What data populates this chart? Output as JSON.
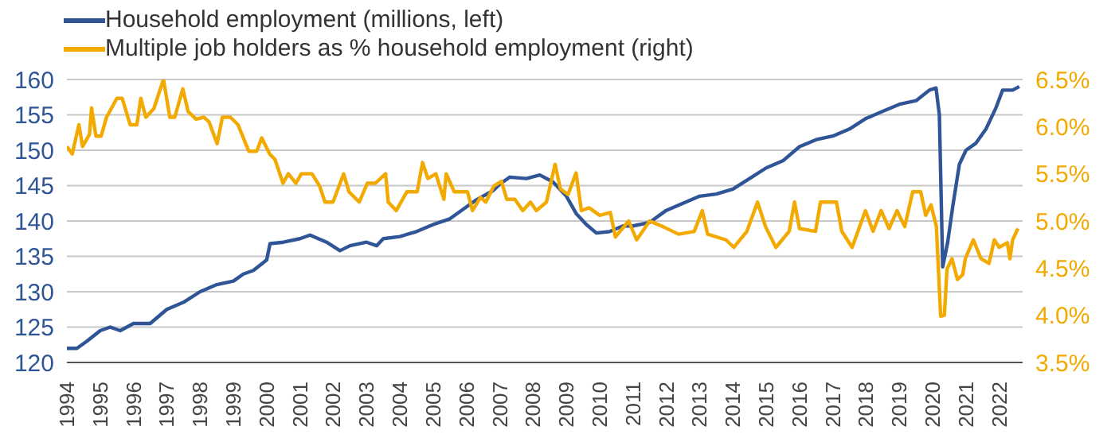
{
  "chart_data": {
    "type": "line",
    "legend": "top left",
    "grid": "y",
    "marker": "none",
    "line_style": "solid",
    "xlim": [
      1994,
      2022.7
    ],
    "xticks": [
      1994,
      1995,
      1996,
      1997,
      1998,
      1999,
      2000,
      2001,
      2002,
      2003,
      2004,
      2005,
      2006,
      2007,
      2008,
      2009,
      2010,
      2011,
      2012,
      2013,
      2014,
      2015,
      2016,
      2017,
      2018,
      2019,
      2020,
      2021,
      2022
    ],
    "ylim": [
      120,
      160
    ],
    "yticks": [
      120,
      125,
      130,
      135,
      140,
      145,
      150,
      155,
      160
    ],
    "y2lim": [
      3.5,
      6.5
    ],
    "y2ticks": [
      {
        "value": 3.5,
        "label": "3.5%"
      },
      {
        "value": 4.0,
        "label": "4.0%"
      },
      {
        "value": 4.5,
        "label": "4.5%"
      },
      {
        "value": 5.0,
        "label": "5.0%"
      },
      {
        "value": 5.5,
        "label": "5.5%"
      },
      {
        "value": 6.0,
        "label": "6.0%"
      },
      {
        "value": 6.5,
        "label": "6.5%"
      }
    ],
    "series": [
      {
        "name": "Household employment (millions, left)",
        "color": "#2f5597",
        "x": [
          1994,
          1994.3,
          1994.6,
          1995,
          1995.3,
          1995.6,
          1996,
          1996.5,
          1997,
          1997.5,
          1998,
          1998.5,
          1999,
          1999.3,
          1999.6,
          2000,
          2000.1,
          2000.5,
          2001,
          2001.3,
          2001.8,
          2002.2,
          2002.5,
          2003,
          2003.3,
          2003.5,
          2004,
          2004.5,
          2005,
          2005.5,
          2006,
          2006.3,
          2006.8,
          2007,
          2007.3,
          2007.8,
          2008.2,
          2008.6,
          2009,
          2009.3,
          2009.6,
          2009.9,
          2010.3,
          2010.7,
          2011,
          2011.5,
          2012,
          2012.5,
          2013,
          2013.5,
          2014,
          2014.5,
          2015,
          2015.5,
          2016,
          2016.5,
          2017,
          2017.5,
          2018,
          2018.5,
          2019,
          2019.5,
          2019.9,
          2020.1,
          2020.2,
          2020.3,
          2020.45,
          2020.6,
          2020.8,
          2021,
          2021.3,
          2021.6,
          2021.9,
          2022.1,
          2022.4,
          2022.6
        ],
        "values": [
          122,
          122,
          123,
          124.5,
          125,
          124.5,
          125.5,
          125.5,
          127.5,
          128.5,
          130,
          131,
          131.5,
          132.5,
          133,
          134.5,
          136.8,
          137,
          137.5,
          138,
          137,
          135.8,
          136.5,
          137,
          136.5,
          137.5,
          137.8,
          138.5,
          139.5,
          140.3,
          142,
          143,
          144.3,
          145.2,
          146.2,
          146,
          146.5,
          145.5,
          143.5,
          141,
          139.5,
          138.3,
          138.5,
          139.3,
          139.3,
          139.8,
          141.5,
          142.5,
          143.5,
          143.8,
          144.5,
          146,
          147.5,
          148.5,
          150.5,
          151.5,
          152,
          153,
          154.5,
          155.5,
          156.5,
          157,
          158.5,
          158.8,
          155,
          133.5,
          137,
          142,
          148,
          150,
          151,
          153,
          156,
          158.5,
          158.5,
          159
        ]
      },
      {
        "name": "Multiple job holders as % household employment (right)",
        "color": "#f2a900",
        "axis": "y2",
        "x": [
          1994,
          1994.16,
          1994.36,
          1994.47,
          1994.68,
          1994.74,
          1994.87,
          1995.03,
          1995.19,
          1995.5,
          1995.66,
          1995.9,
          1996.1,
          1996.22,
          1996.37,
          1996.61,
          1996.9,
          1997.09,
          1997.24,
          1997.48,
          1997.64,
          1997.88,
          1998.11,
          1998.27,
          1998.51,
          1998.67,
          1998.91,
          1999.14,
          1999.46,
          1999.7,
          1999.85,
          2000.09,
          2000.25,
          2000.49,
          2000.65,
          2000.88,
          2001.04,
          2001.36,
          2001.59,
          2001.75,
          2001.99,
          2002.31,
          2002.47,
          2002.78,
          2003.02,
          2003.26,
          2003.57,
          2003.65,
          2003.89,
          2004.21,
          2004.52,
          2004.68,
          2004.84,
          2005.08,
          2005.32,
          2005.39,
          2005.63,
          2006.03,
          2006.18,
          2006.42,
          2006.58,
          2006.82,
          2007.05,
          2007.21,
          2007.45,
          2007.69,
          2007.92,
          2008.1,
          2008.4,
          2008.66,
          2008.82,
          2009.05,
          2009.29,
          2009.45,
          2009.68,
          2010,
          2010.32,
          2010.47,
          2010.87,
          2011.11,
          2011.5,
          2011.9,
          2012.37,
          2012.84,
          2013.08,
          2013.24,
          2013.79,
          2014.03,
          2014.42,
          2014.74,
          2014.98,
          2015.29,
          2015.69,
          2015.85,
          2016,
          2016.48,
          2016.63,
          2017.11,
          2017.27,
          2017.58,
          2017.98,
          2018.21,
          2018.45,
          2018.69,
          2018.93,
          2019.16,
          2019.4,
          2019.64,
          2019.79,
          2019.95,
          2020.11,
          2020.24,
          2020.35,
          2020.43,
          2020.58,
          2020.74,
          2020.9,
          2020.98,
          2021.22,
          2021.45,
          2021.69,
          2021.85,
          2022,
          2022.24,
          2022.32,
          2022.4,
          2022.56
        ],
        "values": [
          5.79,
          5.71,
          6.02,
          5.79,
          5.92,
          6.2,
          5.9,
          5.9,
          6.1,
          6.3,
          6.3,
          6.02,
          6.02,
          6.3,
          6.1,
          6.19,
          6.5,
          6.1,
          6.1,
          6.4,
          6.16,
          6.08,
          6.1,
          6.05,
          5.82,
          6.1,
          6.1,
          6.02,
          5.74,
          5.74,
          5.88,
          5.71,
          5.65,
          5.4,
          5.5,
          5.4,
          5.5,
          5.5,
          5.37,
          5.2,
          5.2,
          5.5,
          5.31,
          5.2,
          5.4,
          5.4,
          5.5,
          5.2,
          5.11,
          5.31,
          5.31,
          5.62,
          5.45,
          5.5,
          5.23,
          5.5,
          5.31,
          5.31,
          5.11,
          5.25,
          5.2,
          5.37,
          5.42,
          5.23,
          5.23,
          5.11,
          5.2,
          5.11,
          5.2,
          5.6,
          5.34,
          5.28,
          5.51,
          5.11,
          5.14,
          5.06,
          5.09,
          4.83,
          5.0,
          4.8,
          5.0,
          4.94,
          4.86,
          4.89,
          5.11,
          4.86,
          4.8,
          4.72,
          4.89,
          5.2,
          4.94,
          4.72,
          4.89,
          5.2,
          4.92,
          4.89,
          5.2,
          5.2,
          4.89,
          4.72,
          5.11,
          4.89,
          5.11,
          4.92,
          5.11,
          4.94,
          5.31,
          5.31,
          5.06,
          5.17,
          4.94,
          3.99,
          4.0,
          4.49,
          4.6,
          4.38,
          4.43,
          4.6,
          4.8,
          4.6,
          4.55,
          4.8,
          4.72,
          4.77,
          4.6,
          4.8,
          4.92
        ]
      }
    ]
  }
}
